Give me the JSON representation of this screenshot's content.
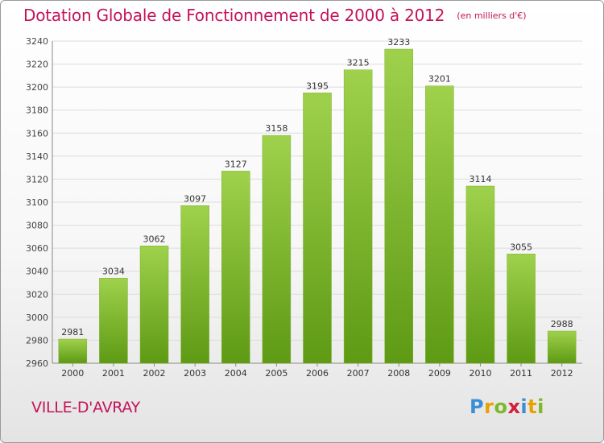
{
  "chart_data": {
    "type": "bar",
    "title": "Dotation Globale de Fonctionnement de 2000 à 2012",
    "subtitle": "(en milliers d'€)",
    "categories": [
      "2000",
      "2001",
      "2002",
      "2003",
      "2004",
      "2005",
      "2006",
      "2007",
      "2008",
      "2009",
      "2010",
      "2011",
      "2012"
    ],
    "values": [
      2981,
      3034,
      3062,
      3097,
      3127,
      3158,
      3195,
      3215,
      3233,
      3201,
      3114,
      3055,
      2988
    ],
    "ylim": [
      2960,
      3240
    ],
    "yticks": [
      2960,
      2980,
      3000,
      3020,
      3040,
      3060,
      3080,
      3100,
      3120,
      3140,
      3160,
      3180,
      3200,
      3220,
      3240
    ],
    "xlabel": "",
    "ylabel": "",
    "grid": true,
    "legend": "none",
    "bar_color_top": "#9fd14c",
    "bar_color_bottom": "#5e9a14"
  },
  "commune": "VILLE-D'AVRAY",
  "logo": {
    "text": "Proxiti",
    "icon": "proxiti-logo"
  },
  "colors": {
    "accent": "#c4145a",
    "grid": "#dcdcdc"
  }
}
